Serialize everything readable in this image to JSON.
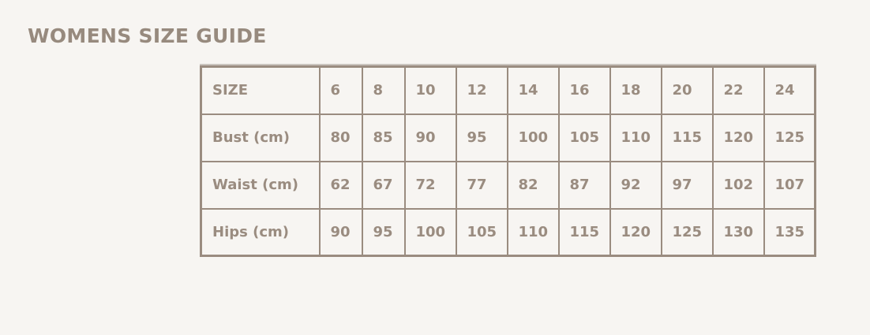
{
  "title": "WOMENS SIZE GUIDE",
  "colors": {
    "text": "#9a8c80",
    "background": "#f7f5f2",
    "border": "#9a8c80"
  },
  "table": {
    "rows": [
      {
        "label": "SIZE",
        "values": [
          "6",
          "8",
          "10",
          "12",
          "14",
          "16",
          "18",
          "20",
          "22",
          "24"
        ]
      },
      {
        "label": "Bust (cm)",
        "values": [
          "80",
          "85",
          "90",
          "95",
          "100",
          "105",
          "110",
          "115",
          "120",
          "125"
        ]
      },
      {
        "label": "Waist (cm)",
        "values": [
          "62",
          "67",
          "72",
          "77",
          "82",
          "87",
          "92",
          "97",
          "102",
          "107"
        ]
      },
      {
        "label": "Hips (cm)",
        "values": [
          "90",
          "95",
          "100",
          "105",
          "110",
          "115",
          "120",
          "125",
          "130",
          "135"
        ]
      }
    ]
  }
}
